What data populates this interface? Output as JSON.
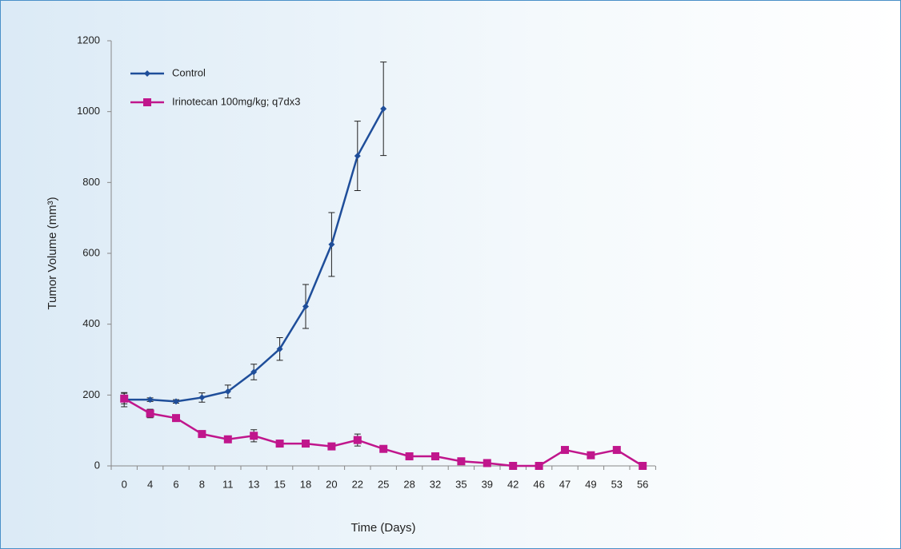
{
  "chart_data": {
    "type": "line",
    "xlabel": "Time (Days)",
    "ylabel": "Tumor Volume (mm³)",
    "categories": [
      "0",
      "4",
      "6",
      "8",
      "11",
      "13",
      "15",
      "18",
      "20",
      "22",
      "25",
      "28",
      "32",
      "35",
      "39",
      "42",
      "46",
      "47",
      "49",
      "53",
      "56"
    ],
    "series": [
      {
        "name": "Control",
        "color": "#1f4e9a",
        "marker": "diamond",
        "values": [
          187,
          187,
          182,
          193,
          210,
          265,
          330,
          450,
          625,
          875,
          1008,
          null,
          null,
          null,
          null,
          null,
          null,
          null,
          null,
          null,
          null
        ],
        "errors": [
          20,
          5,
          5,
          13,
          18,
          22,
          32,
          62,
          90,
          98,
          132,
          null,
          null,
          null,
          null,
          null,
          null,
          null,
          null,
          null,
          null
        ]
      },
      {
        "name": "Irinotecan 100mg/kg; q7dx3",
        "color": "#c0168c",
        "marker": "square",
        "values": [
          190,
          148,
          135,
          90,
          75,
          85,
          63,
          63,
          55,
          73,
          48,
          27,
          27,
          13,
          8,
          0,
          0,
          45,
          30,
          45,
          0
        ],
        "errors": [
          15,
          12,
          0,
          0,
          0,
          17,
          0,
          0,
          0,
          17,
          0,
          0,
          0,
          0,
          0,
          0,
          0,
          0,
          0,
          0,
          0
        ]
      }
    ],
    "ylim": [
      0,
      1200
    ],
    "yticks": [
      0,
      200,
      400,
      600,
      800,
      1000,
      1200
    ],
    "legend": "upper left"
  }
}
